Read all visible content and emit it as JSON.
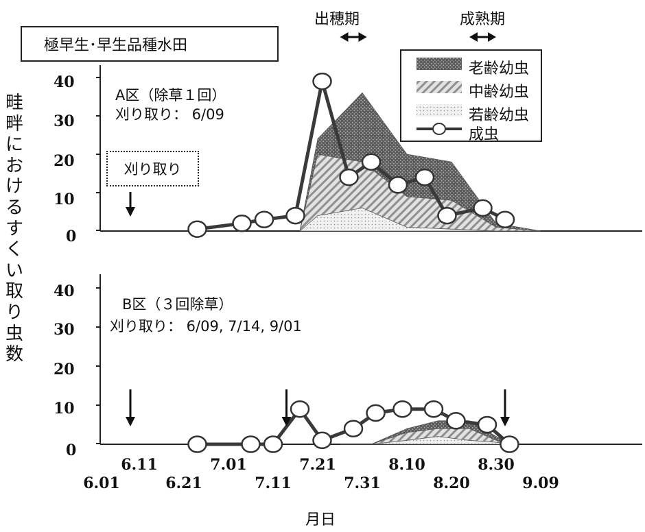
{
  "title_box": "極早生･早生品種水田",
  "y_axis_label": "畦畔におけるすくい取り虫数",
  "x_axis_label": "月日",
  "phases": [
    {
      "label": "出穂期",
      "start": "7.26",
      "end": "8.01"
    },
    {
      "label": "成熟期",
      "start": "8.24",
      "end": "8.30"
    }
  ],
  "legend": {
    "old": "老齢幼虫",
    "mid": "中齢幼虫",
    "young": "若齢幼虫",
    "adult": "成虫"
  },
  "panel_a": {
    "label": "A区（除草１回）",
    "mowing_text": "刈り取り：  6/09",
    "mowing_box_label": "刈り取り"
  },
  "panel_b": {
    "label": "B区（３回除草）",
    "mowing_text": "刈り取り：  6/09, 7/14, 9/01"
  },
  "chart_data": [
    {
      "type": "area",
      "panel": "A区（除草１回）",
      "x_tick_labels": [
        "6.01",
        "6.11",
        "6.21",
        "7.01",
        "7.11",
        "7.21",
        "7.31",
        "8.10",
        "8.20",
        "8.30",
        "9.09"
      ],
      "y_ticks": [
        0,
        10,
        20,
        30,
        40
      ],
      "ylim": [
        0,
        40
      ],
      "mowing_dates": [
        "6.09"
      ],
      "stacked_series": [
        {
          "name": "若齢幼虫",
          "x": [
            "7.17",
            "7.21",
            "7.31",
            "8.10",
            "8.20",
            "8.30",
            "9.09"
          ],
          "values": [
            0,
            4,
            6,
            1,
            0.5,
            0,
            0
          ]
        },
        {
          "name": "中齢幼虫",
          "x": [
            "7.17",
            "7.21",
            "7.31",
            "8.10",
            "8.20",
            "8.30",
            "9.09"
          ],
          "values": [
            0,
            20,
            18,
            9,
            8,
            1,
            0
          ]
        },
        {
          "name": "老齢幼虫",
          "x": [
            "7.17",
            "7.21",
            "7.31",
            "8.10",
            "8.20",
            "8.30",
            "9.09"
          ],
          "values": [
            0,
            24,
            36,
            20,
            18,
            2,
            0
          ]
        }
      ],
      "adult_series": {
        "name": "成虫",
        "x": [
          "6.24",
          "7.04",
          "7.09",
          "7.16",
          "7.22",
          "7.28",
          "8.02",
          "8.08",
          "8.14",
          "8.19",
          "8.27",
          "9.01"
        ],
        "values": [
          0.5,
          2,
          3,
          4,
          39,
          14,
          18,
          12,
          14,
          4,
          6,
          3
        ]
      }
    },
    {
      "type": "area",
      "panel": "B区（３回除草）",
      "x_tick_labels": [
        "6.01",
        "6.11",
        "6.21",
        "7.01",
        "7.11",
        "7.21",
        "7.31",
        "8.10",
        "8.20",
        "8.30",
        "9.09"
      ],
      "y_ticks": [
        0,
        10,
        20,
        30,
        40
      ],
      "ylim": [
        0,
        40
      ],
      "mowing_dates": [
        "6.09",
        "7.14",
        "9.01"
      ],
      "stacked_series": [
        {
          "name": "若齢幼虫",
          "x": [
            "7.26",
            "8.02",
            "8.10",
            "8.17",
            "8.24",
            "8.30",
            "9.03"
          ],
          "values": [
            0,
            0,
            1,
            2,
            1,
            0.5,
            0
          ]
        },
        {
          "name": "中齢幼虫",
          "x": [
            "7.26",
            "8.02",
            "8.10",
            "8.17",
            "8.24",
            "8.30",
            "9.03"
          ],
          "values": [
            0,
            0,
            3,
            4,
            4,
            1,
            0
          ]
        },
        {
          "name": "老齢幼虫",
          "x": [
            "7.26",
            "8.02",
            "8.10",
            "8.17",
            "8.24",
            "8.30",
            "9.03"
          ],
          "values": [
            0,
            0,
            4,
            6,
            6,
            2,
            0
          ]
        }
      ],
      "adult_series": {
        "name": "成虫",
        "x": [
          "6.24",
          "7.06",
          "7.11",
          "7.17",
          "7.22",
          "7.29",
          "8.03",
          "8.09",
          "8.16",
          "8.21",
          "8.28",
          "9.02"
        ],
        "values": [
          0,
          0,
          0,
          9,
          1,
          4,
          8,
          9,
          9,
          6,
          5,
          0
        ]
      }
    }
  ]
}
